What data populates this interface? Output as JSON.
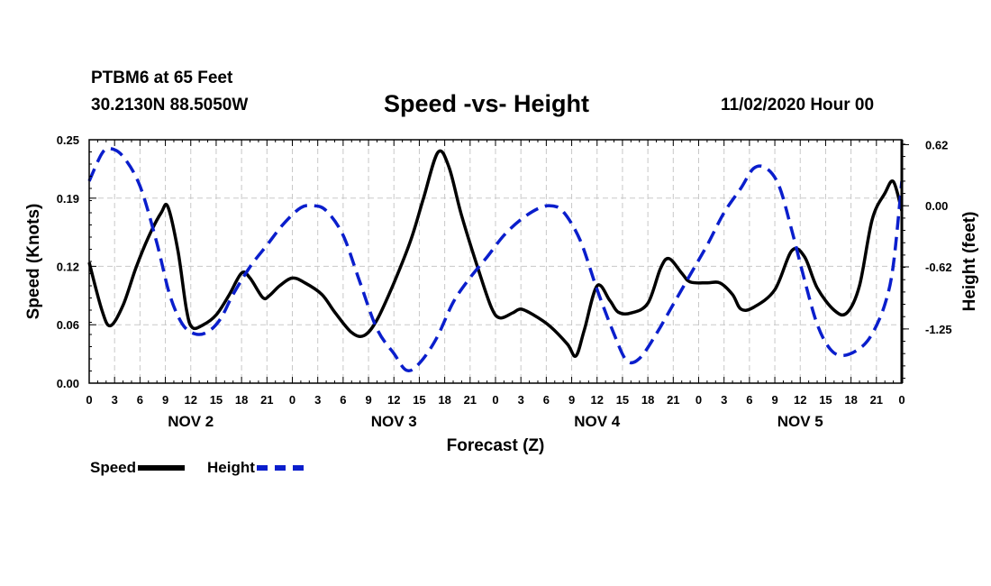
{
  "header": {
    "station": "PTBM6 at 65 Feet",
    "coordinates": "30.2130N 88.5050W",
    "title": "Speed -vs- Height",
    "issued": "11/02/2020 Hour 00"
  },
  "legend": {
    "speed_label": "Speed",
    "height_label": "Height"
  },
  "chart_data": {
    "type": "line",
    "title": "Speed -vs- Height",
    "xlabel": "Forecast (Z)",
    "ylabel": "Speed (Knots)",
    "y2label": "Height (feet)",
    "x_unit": "hours from 11/02/2020 00Z",
    "xlim": [
      0,
      96
    ],
    "ylim": [
      0,
      0.25
    ],
    "y2lim": [
      -1.8,
      0.67
    ],
    "y_ticks": [
      0.0,
      0.06,
      0.12,
      0.19,
      0.25
    ],
    "y_tick_labels": [
      "0.00",
      "0.06",
      "0.12",
      "0.19",
      "0.25"
    ],
    "y2_ticks": [
      0.62,
      0.0,
      -0.62,
      -1.25
    ],
    "y2_tick_labels": [
      "0.62",
      "0.00",
      "-0.62",
      "-1.25"
    ],
    "x_ticks": [
      0,
      3,
      6,
      9,
      12,
      15,
      18,
      21,
      24,
      27,
      30,
      33,
      36,
      39,
      42,
      45,
      48,
      51,
      54,
      57,
      60,
      63,
      66,
      69,
      72,
      75,
      78,
      81,
      84,
      87,
      90,
      93,
      96
    ],
    "x_tick_labels": [
      "0",
      "3",
      "6",
      "9",
      "12",
      "15",
      "18",
      "21",
      "0",
      "3",
      "6",
      "9",
      "12",
      "15",
      "18",
      "21",
      "0",
      "3",
      "6",
      "9",
      "12",
      "15",
      "18",
      "21",
      "0",
      "3",
      "6",
      "9",
      "12",
      "15",
      "18",
      "21",
      "0"
    ],
    "day_labels": [
      {
        "x": 12,
        "label": "NOV 2"
      },
      {
        "x": 36,
        "label": "NOV 3"
      },
      {
        "x": 60,
        "label": "NOV 4"
      },
      {
        "x": 84,
        "label": "NOV 5"
      }
    ],
    "grid": true,
    "series": [
      {
        "name": "Speed",
        "axis": "left",
        "color": "#000000",
        "dash": "solid",
        "points": [
          [
            0,
            0.124
          ],
          [
            1.5,
            0.075
          ],
          [
            2.5,
            0.059
          ],
          [
            4,
            0.08
          ],
          [
            5.5,
            0.118
          ],
          [
            7,
            0.15
          ],
          [
            8.5,
            0.175
          ],
          [
            9.3,
            0.181
          ],
          [
            10.5,
            0.135
          ],
          [
            11.5,
            0.075
          ],
          [
            12.2,
            0.057
          ],
          [
            13.5,
            0.06
          ],
          [
            15,
            0.07
          ],
          [
            16.5,
            0.09
          ],
          [
            18,
            0.113
          ],
          [
            19,
            0.108
          ],
          [
            20.5,
            0.088
          ],
          [
            21.3,
            0.09
          ],
          [
            22.5,
            0.1
          ],
          [
            24,
            0.108
          ],
          [
            25.5,
            0.103
          ],
          [
            27.5,
            0.091
          ],
          [
            29,
            0.073
          ],
          [
            31,
            0.052
          ],
          [
            32.5,
            0.049
          ],
          [
            34,
            0.065
          ],
          [
            36,
            0.103
          ],
          [
            38,
            0.147
          ],
          [
            39.5,
            0.19
          ],
          [
            41.2,
            0.237
          ],
          [
            42.5,
            0.222
          ],
          [
            44,
            0.172
          ],
          [
            46,
            0.116
          ],
          [
            47.5,
            0.078
          ],
          [
            48.5,
            0.067
          ],
          [
            50,
            0.072
          ],
          [
            51,
            0.076
          ],
          [
            52.5,
            0.07
          ],
          [
            54.5,
            0.058
          ],
          [
            56.5,
            0.04
          ],
          [
            57.5,
            0.028
          ],
          [
            58.5,
            0.055
          ],
          [
            60,
            0.1
          ],
          [
            61.5,
            0.085
          ],
          [
            62.5,
            0.073
          ],
          [
            64,
            0.072
          ],
          [
            66,
            0.082
          ],
          [
            67.5,
            0.118
          ],
          [
            68.5,
            0.128
          ],
          [
            70,
            0.113
          ],
          [
            71,
            0.104
          ],
          [
            73,
            0.103
          ],
          [
            74.5,
            0.103
          ],
          [
            76,
            0.091
          ],
          [
            77,
            0.076
          ],
          [
            78.5,
            0.078
          ],
          [
            81,
            0.096
          ],
          [
            83,
            0.136
          ],
          [
            84.5,
            0.13
          ],
          [
            86,
            0.098
          ],
          [
            88,
            0.075
          ],
          [
            89.5,
            0.072
          ],
          [
            91,
            0.1
          ],
          [
            92.5,
            0.168
          ],
          [
            94,
            0.195
          ],
          [
            95,
            0.207
          ],
          [
            96,
            0.177
          ]
        ]
      },
      {
        "name": "Height",
        "axis": "right",
        "color": "#0a1ecc",
        "dash": "dashed",
        "points": [
          [
            0,
            0.25
          ],
          [
            1.5,
            0.53
          ],
          [
            2.5,
            0.58
          ],
          [
            4,
            0.5
          ],
          [
            6,
            0.2
          ],
          [
            8,
            -0.38
          ],
          [
            9.5,
            -0.9
          ],
          [
            11,
            -1.2
          ],
          [
            12.5,
            -1.3
          ],
          [
            14,
            -1.28
          ],
          [
            15.5,
            -1.15
          ],
          [
            17,
            -0.9
          ],
          [
            19,
            -0.62
          ],
          [
            21,
            -0.4
          ],
          [
            23,
            -0.18
          ],
          [
            25,
            -0.02
          ],
          [
            26.5,
            0.0
          ],
          [
            28,
            -0.05
          ],
          [
            30,
            -0.3
          ],
          [
            32,
            -0.78
          ],
          [
            34,
            -1.25
          ],
          [
            36,
            -1.5
          ],
          [
            37.5,
            -1.67
          ],
          [
            39,
            -1.6
          ],
          [
            41,
            -1.35
          ],
          [
            43,
            -0.98
          ],
          [
            45,
            -0.73
          ],
          [
            47,
            -0.52
          ],
          [
            49,
            -0.3
          ],
          [
            51,
            -0.14
          ],
          [
            53,
            -0.03
          ],
          [
            54.5,
            0.0
          ],
          [
            56,
            -0.06
          ],
          [
            58,
            -0.35
          ],
          [
            60,
            -0.85
          ],
          [
            62,
            -1.3
          ],
          [
            63.5,
            -1.57
          ],
          [
            65,
            -1.55
          ],
          [
            67,
            -1.3
          ],
          [
            69,
            -1.0
          ],
          [
            71,
            -0.7
          ],
          [
            73,
            -0.4
          ],
          [
            75,
            -0.07
          ],
          [
            77,
            0.18
          ],
          [
            78.5,
            0.38
          ],
          [
            80,
            0.38
          ],
          [
            81.5,
            0.2
          ],
          [
            83,
            -0.25
          ],
          [
            84.5,
            -0.75
          ],
          [
            86,
            -1.2
          ],
          [
            87.5,
            -1.45
          ],
          [
            89,
            -1.52
          ],
          [
            91,
            -1.45
          ],
          [
            92.5,
            -1.3
          ],
          [
            94,
            -1.0
          ],
          [
            95,
            -0.6
          ],
          [
            96,
            0.25
          ]
        ]
      }
    ]
  }
}
